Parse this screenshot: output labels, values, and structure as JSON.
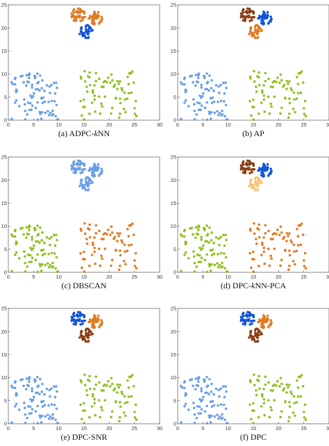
{
  "figure": {
    "captions": [
      "(a) ADPC-kNN",
      "(b) AP",
      "(c) DBSCAN",
      "(d) DPC-kNN-PCA",
      "(e) DPC-SNR",
      "(f) DPC"
    ],
    "caption_italic": [
      "k",
      "",
      "",
      "k",
      "",
      ""
    ]
  },
  "colors": {
    "light_blue": "#6a9fe6",
    "mid_blue": "#5b8fe0",
    "royal_blue": "#1254d6",
    "orange": "#e07b22",
    "dark_brown": "#8a3f14",
    "green": "#8dc21f",
    "peach": "#f8c477",
    "axis": "#555555"
  },
  "chart_data": [
    {
      "type": "scatter",
      "title": "(a) ADPC-kNN",
      "xlim": [
        0,
        30
      ],
      "ylim": [
        0,
        25
      ],
      "xticks": [
        0,
        5,
        10,
        15,
        20,
        25,
        30
      ],
      "yticks": [
        0,
        5,
        10,
        15,
        20,
        25
      ],
      "grid": false,
      "series": [
        {
          "color": "#6a9fe6",
          "cluster": "left-blob",
          "region": [
            0.5,
            9.5,
            0,
            10.5
          ],
          "count": 85
        },
        {
          "color": "#8dc21f",
          "cluster": "right-blob",
          "region": [
            14,
            25.5,
            0,
            10.5
          ],
          "count": 75
        },
        {
          "color": "#e07b22",
          "cluster": "tri-top-left",
          "center": [
            13.8,
            22.8
          ],
          "count": 40
        },
        {
          "color": "#e07b22",
          "cluster": "tri-top-right",
          "center": [
            17.3,
            22.1
          ],
          "count": 40
        },
        {
          "color": "#1254d6",
          "cluster": "tri-bottom",
          "center": [
            15.5,
            19.2
          ],
          "count": 40
        }
      ]
    },
    {
      "type": "scatter",
      "title": "(b) AP",
      "xlim": [
        0,
        30
      ],
      "ylim": [
        0,
        25
      ],
      "xticks": [
        0,
        5,
        10,
        15,
        20,
        25,
        30
      ],
      "yticks": [
        0,
        5,
        10,
        15,
        20,
        25
      ],
      "grid": false,
      "series": [
        {
          "color": "#6a9fe6",
          "cluster": "left-blob",
          "region": [
            0.5,
            9.5,
            0,
            10.5
          ],
          "count": 85
        },
        {
          "color": "#8dc21f",
          "cluster": "right-blob",
          "region": [
            14,
            25.5,
            0,
            10.5
          ],
          "count": 75
        },
        {
          "color": "#8a3f14",
          "cluster": "tri-top-left",
          "center": [
            13.8,
            22.8
          ],
          "count": 40
        },
        {
          "color": "#1254d6",
          "cluster": "tri-top-right",
          "center": [
            17.3,
            22.1
          ],
          "count": 40
        },
        {
          "color": "#e07b22",
          "cluster": "tri-bottom",
          "center": [
            15.5,
            19.2
          ],
          "count": 40
        }
      ]
    },
    {
      "type": "scatter",
      "title": "(c) DBSCAN",
      "xlim": [
        0,
        30
      ],
      "ylim": [
        0,
        25
      ],
      "xticks": [
        0,
        5,
        10,
        15,
        20,
        25,
        30
      ],
      "yticks": [
        0,
        5,
        10,
        15,
        20,
        25
      ],
      "grid": false,
      "series": [
        {
          "color": "#8dc21f",
          "cluster": "left-blob",
          "region": [
            0.5,
            9.5,
            0,
            10.5
          ],
          "count": 85
        },
        {
          "color": "#e07b22",
          "cluster": "right-blob",
          "region": [
            14,
            25.5,
            0,
            10.5
          ],
          "count": 75
        },
        {
          "color": "#6a9fe6",
          "cluster": "tri-top-left",
          "center": [
            13.8,
            22.8
          ],
          "count": 40
        },
        {
          "color": "#6a9fe6",
          "cluster": "tri-top-right",
          "center": [
            17.3,
            22.1
          ],
          "count": 40
        },
        {
          "color": "#6a9fe6",
          "cluster": "tri-bottom",
          "center": [
            15.5,
            19.2
          ],
          "count": 40
        }
      ]
    },
    {
      "type": "scatter",
      "title": "(d) DPC-kNN-PCA",
      "xlim": [
        0,
        30
      ],
      "ylim": [
        0,
        25
      ],
      "xticks": [
        0,
        5,
        10,
        15,
        20,
        25,
        30
      ],
      "yticks": [
        0,
        5,
        10,
        15,
        20,
        25
      ],
      "grid": false,
      "series": [
        {
          "color": "#8dc21f",
          "cluster": "left-blob",
          "region": [
            0.5,
            9.5,
            0,
            10.5
          ],
          "count": 85
        },
        {
          "color": "#e07b22",
          "cluster": "right-blob",
          "region": [
            14,
            25.5,
            0,
            10.5
          ],
          "count": 75
        },
        {
          "color": "#8a3f14",
          "cluster": "tri-top-left",
          "center": [
            13.8,
            22.8
          ],
          "count": 40
        },
        {
          "color": "#1254d6",
          "cluster": "tri-top-right",
          "center": [
            17.3,
            22.1
          ],
          "count": 40
        },
        {
          "color": "#f8c477",
          "cluster": "tri-bottom",
          "center": [
            15.5,
            19.2
          ],
          "count": 40
        }
      ]
    },
    {
      "type": "scatter",
      "title": "(e) DPC-SNR",
      "xlim": [
        0,
        30
      ],
      "ylim": [
        0,
        25
      ],
      "xticks": [
        0,
        5,
        10,
        15,
        20,
        25,
        30
      ],
      "yticks": [
        0,
        5,
        10,
        15,
        20,
        25
      ],
      "grid": false,
      "series": [
        {
          "color": "#6a9fe6",
          "cluster": "left-blob",
          "region": [
            0.5,
            9.5,
            0,
            10.5
          ],
          "count": 85
        },
        {
          "color": "#8dc21f",
          "cluster": "right-blob",
          "region": [
            14,
            25.5,
            0,
            10.5
          ],
          "count": 75
        },
        {
          "color": "#1254d6",
          "cluster": "tri-top-left",
          "center": [
            13.8,
            22.8
          ],
          "count": 40
        },
        {
          "color": "#e07b22",
          "cluster": "tri-top-right",
          "center": [
            17.3,
            22.1
          ],
          "count": 40
        },
        {
          "color": "#8a3f14",
          "cluster": "tri-bottom",
          "center": [
            15.5,
            19.2
          ],
          "count": 40
        }
      ]
    },
    {
      "type": "scatter",
      "title": "(f) DPC",
      "xlim": [
        0,
        30
      ],
      "ylim": [
        0,
        25
      ],
      "xticks": [
        0,
        5,
        10,
        15,
        20,
        25,
        30
      ],
      "yticks": [
        0,
        5,
        10,
        15,
        20,
        25
      ],
      "grid": false,
      "series": [
        {
          "color": "#6a9fe6",
          "cluster": "left-blob",
          "region": [
            0.5,
            9.5,
            0,
            10.5
          ],
          "count": 85
        },
        {
          "color": "#8dc21f",
          "cluster": "right-blob",
          "region": [
            14,
            25.5,
            0,
            10.5
          ],
          "count": 75
        },
        {
          "color": "#1254d6",
          "cluster": "tri-top-left",
          "center": [
            13.8,
            22.8
          ],
          "count": 40
        },
        {
          "color": "#e07b22",
          "cluster": "tri-top-right",
          "center": [
            17.3,
            22.1
          ],
          "count": 40
        },
        {
          "color": "#8a3f14",
          "cluster": "tri-bottom",
          "center": [
            15.5,
            19.2
          ],
          "count": 40
        }
      ]
    }
  ]
}
